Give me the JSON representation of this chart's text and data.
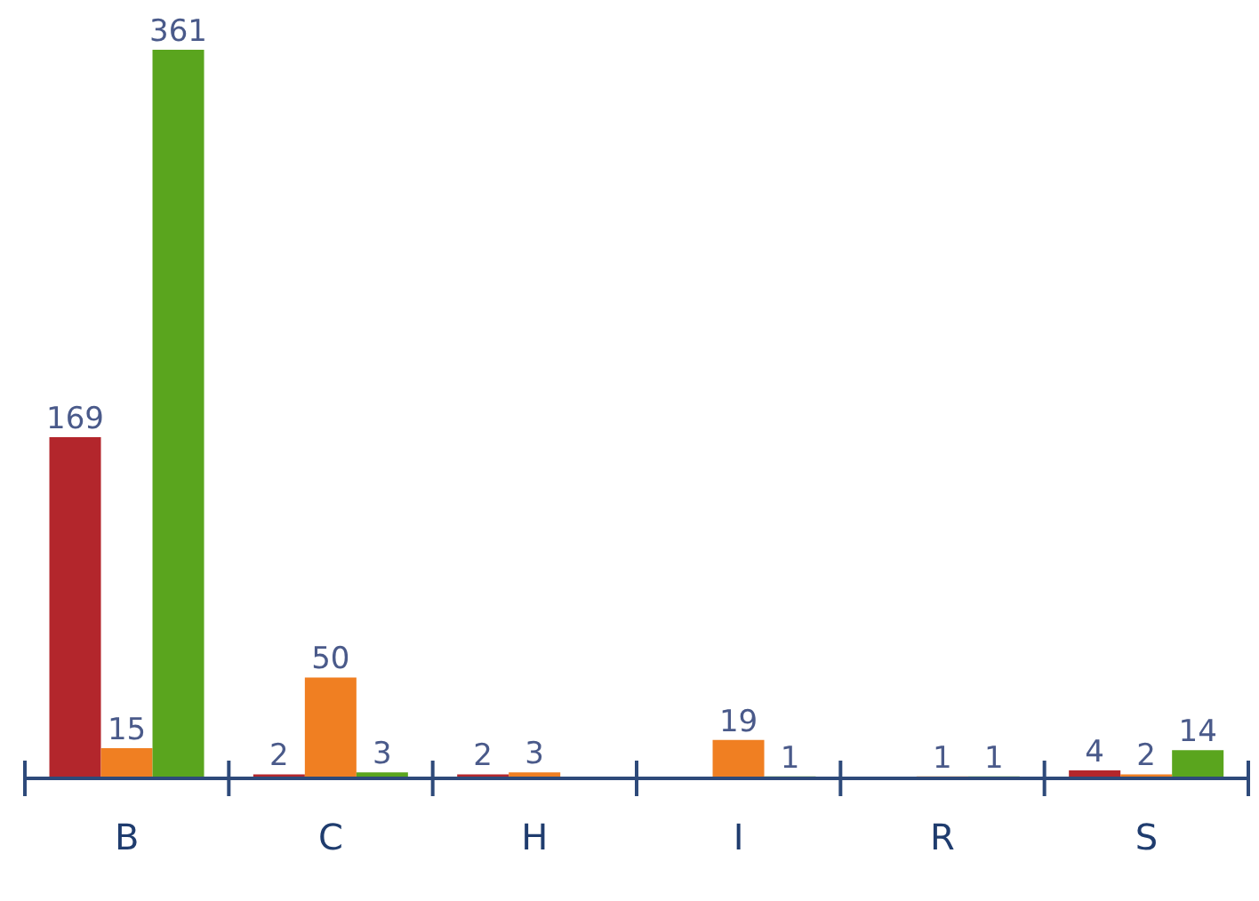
{
  "chart_data": {
    "type": "bar",
    "categories": [
      "B",
      "C",
      "H",
      "I",
      "R",
      "S"
    ],
    "series": [
      {
        "color": "#b3262c",
        "values": [
          169,
          2,
          2,
          null,
          null,
          4
        ]
      },
      {
        "color": "#f07f22",
        "values": [
          15,
          50,
          3,
          19,
          1,
          2
        ]
      },
      {
        "color": "#5aa51e",
        "values": [
          361,
          3,
          null,
          1,
          1,
          14
        ]
      }
    ],
    "data_labels": true,
    "legend": false,
    "grid": false
  }
}
